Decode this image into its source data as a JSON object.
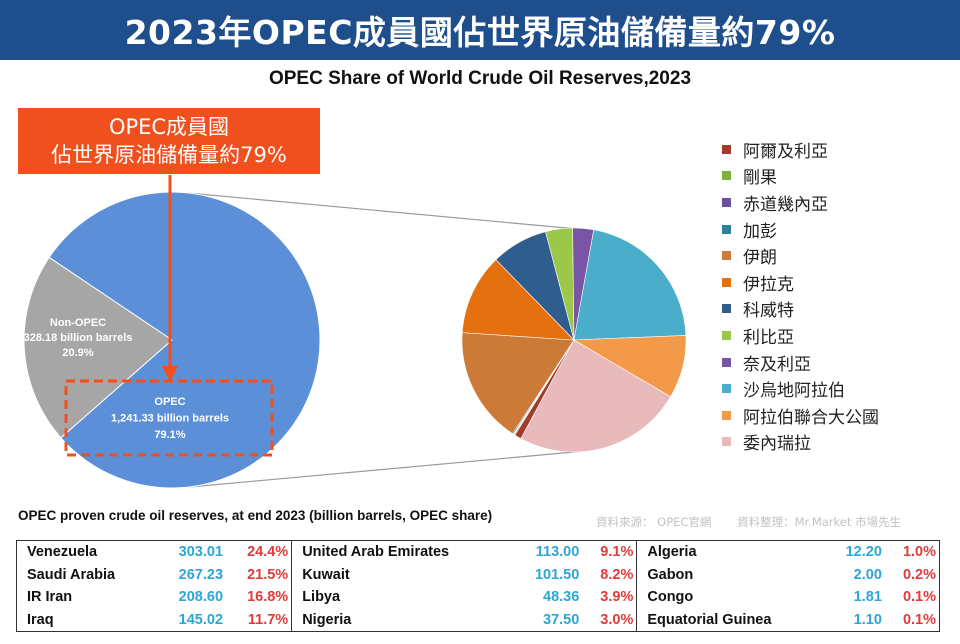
{
  "header": {
    "banner_title": "2023年OPEC成員國佔世界原油儲備量約79%",
    "chart_title": "OPEC Share of World Crude Oil Reserves,2023"
  },
  "callout": {
    "line1": "OPEC成員國",
    "line2": "佔世界原油儲備量約79%"
  },
  "chart_data": [
    {
      "type": "pie",
      "slices": [
        {
          "label": "OPEC",
          "value_text": "1,241.33 billion barrels",
          "value": 1241.33,
          "share_text": "79.1%",
          "share": 79.1,
          "color": "#5b8fd8"
        },
        {
          "label": "Non-OPEC",
          "value_text": "328.18 billion barrels",
          "value": 328.18,
          "share_text": "20.9%",
          "share": 20.9,
          "color": "#a6a6a6"
        }
      ]
    },
    {
      "type": "pie",
      "legend_position": "right",
      "slices": [
        {
          "label": "阿爾及利亞",
          "value": 12.2,
          "color": "#a23b2c"
        },
        {
          "label": "剛果",
          "value": 1.81,
          "color": "#7fb23c"
        },
        {
          "label": "赤道幾內亞",
          "value": 1.1,
          "color": "#6e4f9e"
        },
        {
          "label": "加彭",
          "value": 2.0,
          "color": "#2e7f9c"
        },
        {
          "label": "伊朗",
          "value": 208.6,
          "color": "#cc7a38"
        },
        {
          "label": "伊拉克",
          "value": 145.02,
          "color": "#e5700f"
        },
        {
          "label": "科威特",
          "value": 101.5,
          "color": "#2f5d8e"
        },
        {
          "label": "利比亞",
          "value": 48.36,
          "color": "#9cc84a"
        },
        {
          "label": "奈及利亞",
          "value": 37.5,
          "color": "#7a55a6"
        },
        {
          "label": "沙烏地阿拉伯",
          "value": 267.23,
          "color": "#4aaecb"
        },
        {
          "label": "阿拉伯聯合大公國",
          "value": 113.0,
          "color": "#f39a4a"
        },
        {
          "label": "委內瑞拉",
          "value": 303.01,
          "color": "#e8babc"
        }
      ]
    }
  ],
  "table": {
    "note": "OPEC proven crude oil reserves, at end 2023 (billion barrels, OPEC share)",
    "source_text": "資料來源： OPEC官網",
    "compiled_text": "資料整理：Mr.Market 市場先生",
    "rows": [
      [
        {
          "country": "Venezuela",
          "value": "303.01",
          "share": "24.4%"
        },
        {
          "country": "United Arab Emirates",
          "value": "113.00",
          "share": "9.1%"
        },
        {
          "country": "Algeria",
          "value": "12.20",
          "share": "1.0%"
        }
      ],
      [
        {
          "country": "Saudi Arabia",
          "value": "267.23",
          "share": "21.5%"
        },
        {
          "country": "Kuwait",
          "value": "101.50",
          "share": "8.2%"
        },
        {
          "country": "Gabon",
          "value": "2.00",
          "share": "0.2%"
        }
      ],
      [
        {
          "country": "IR Iran",
          "value": "208.60",
          "share": "16.8%"
        },
        {
          "country": "Libya",
          "value": "48.36",
          "share": "3.9%"
        },
        {
          "country": "Congo",
          "value": "1.81",
          "share": "0.1%"
        }
      ],
      [
        {
          "country": "Iraq",
          "value": "145.02",
          "share": "11.7%"
        },
        {
          "country": "Nigeria",
          "value": "37.50",
          "share": "3.0%"
        },
        {
          "country": "Equatorial Guinea",
          "value": "1.10",
          "share": "0.1%"
        }
      ]
    ]
  },
  "colors": {
    "banner": "#1f4e8c",
    "callout": "#f0501e",
    "value_text": "#2aa7d6",
    "share_text": "#e23a3a"
  }
}
